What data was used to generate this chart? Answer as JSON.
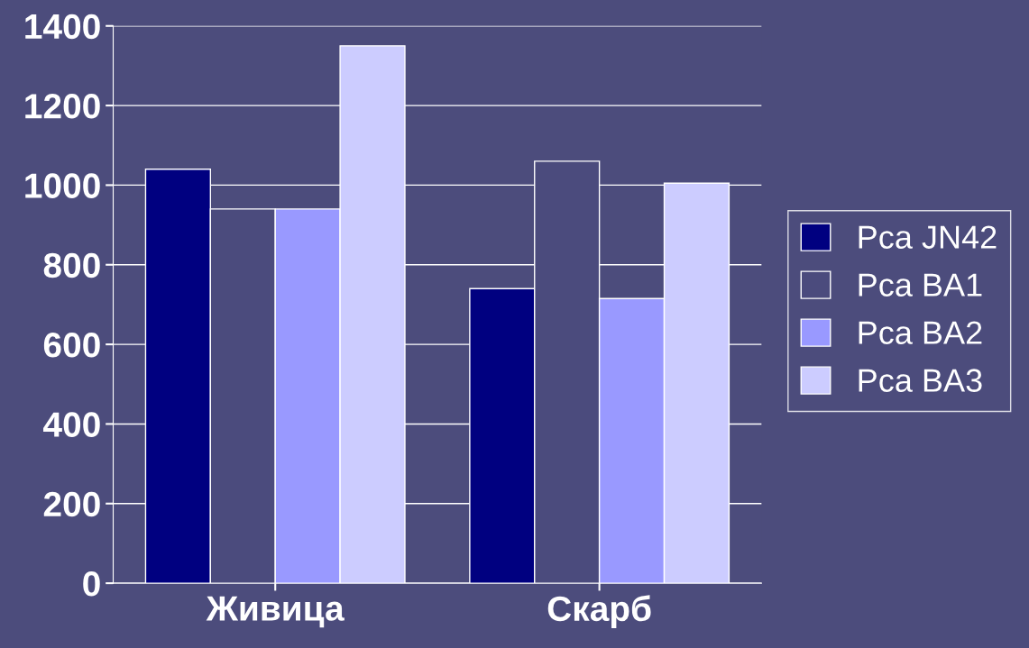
{
  "chart_data": {
    "type": "bar",
    "categories": [
      "Живица",
      "Скарб"
    ],
    "series": [
      {
        "name": "Pca JN42",
        "color": "#000080",
        "values": [
          1040,
          740
        ]
      },
      {
        "name": "Pca BA1",
        "color": "#4b4b7d",
        "values": [
          940,
          1060
        ]
      },
      {
        "name": "Pca BA2",
        "color": "#9999ff",
        "values": [
          940,
          715
        ]
      },
      {
        "name": "Pca BA3",
        "color": "#ccccff",
        "values": [
          1350,
          1005
        ]
      }
    ],
    "ylim": [
      0,
      1400
    ],
    "yticks": [
      0,
      200,
      400,
      600,
      800,
      1000,
      1200,
      1400
    ],
    "grid": "y",
    "legend": "right"
  }
}
